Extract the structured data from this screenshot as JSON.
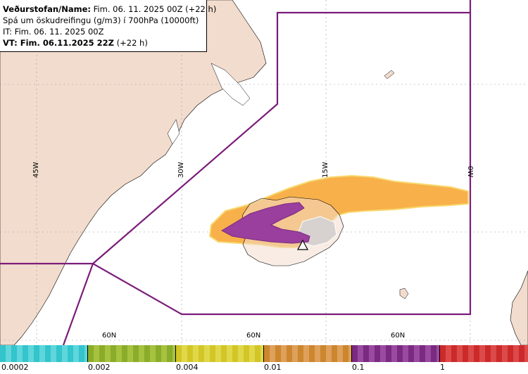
{
  "header": {
    "line1_bold": "Veðurstofan/Name:",
    "line1_rest": " Fim. 06. 11. 2025 00Z (+22 h)",
    "line2": "Spá um öskudreifingu (g/m3) í 700hPa (10000ft)",
    "line3": "IT: Fim. 06. 11. 2025 00Z",
    "line4_bold": "VT: Fim. 06.11.2025 22Z",
    "line4_rest": " (+22 h)"
  },
  "map_labels": {
    "lon": [
      "45W",
      "30W",
      "15W",
      "0W"
    ],
    "lat": [
      "60N",
      "60N",
      "60N"
    ]
  },
  "legend": {
    "labels": [
      "0.0002",
      "0.002",
      "0.004",
      "0.01",
      "0.1",
      "1"
    ],
    "colors": [
      "#33c4cc",
      "#8aac2a",
      "#d2c626",
      "#cc862e",
      "#7a2a80",
      "#cc2a2a"
    ]
  },
  "colors": {
    "land": "#f2dccd",
    "land_grey": "#d7d2d0",
    "boundary": "#7a1c7a",
    "ash_orange": "#f8b04a",
    "ash_purple": "#9a3f9e",
    "glacier": "#ffffff"
  },
  "icons": {
    "volcano": "volcano-icon"
  }
}
